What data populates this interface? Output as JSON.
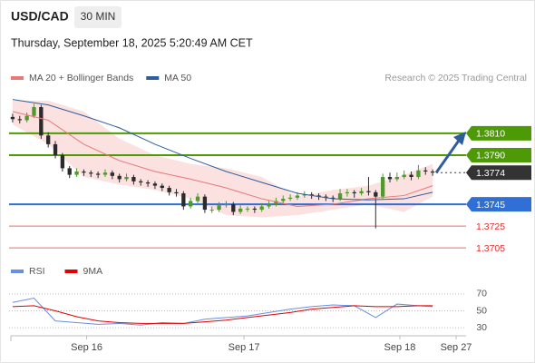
{
  "chart_data": {
    "type": "candlestick",
    "title": "USD/CAD",
    "timeframe": "30 MIN",
    "subtitle": "Thursday, September 18, 2025 5:20:49 AM CET",
    "source": "Research © 2025 Trading Central",
    "xlim": [
      -0.5,
      63.7
    ],
    "ylim": [
      1.3691,
      1.3849
    ],
    "xticks": [
      {
        "value": 10.4,
        "label": "Sep 16"
      },
      {
        "value": 32.5,
        "label": "Sep 17"
      },
      {
        "value": 54.4,
        "label": "Sep 18"
      },
      {
        "value": 62.3,
        "label": "Sep 27"
      }
    ],
    "up_color": "#4e9a2a",
    "down_color": "#2b2b2b",
    "candles": [
      [
        1.3825,
        1.3828,
        1.382,
        1.3823
      ],
      [
        1.3823,
        1.3826,
        1.3819,
        1.3822
      ],
      [
        1.3822,
        1.3829,
        1.382,
        1.3826
      ],
      [
        1.3826,
        1.3837,
        1.3824,
        1.3834
      ],
      [
        1.3834,
        1.3836,
        1.3805,
        1.3808
      ],
      [
        1.3808,
        1.3811,
        1.3797,
        1.38
      ],
      [
        1.38,
        1.3803,
        1.3787,
        1.379
      ],
      [
        1.379,
        1.3792,
        1.3775,
        1.3778
      ],
      [
        1.3778,
        1.378,
        1.3769,
        1.3772
      ],
      [
        1.3772,
        1.3778,
        1.377,
        1.3775
      ],
      [
        1.3775,
        1.3777,
        1.3771,
        1.3774
      ],
      [
        1.3774,
        1.3776,
        1.377,
        1.3773
      ],
      [
        1.3773,
        1.3775,
        1.3769,
        1.3772
      ],
      [
        1.3772,
        1.3777,
        1.377,
        1.3774
      ],
      [
        1.3774,
        1.3776,
        1.3768,
        1.3771
      ],
      [
        1.3771,
        1.3773,
        1.3765,
        1.3768
      ],
      [
        1.3768,
        1.3773,
        1.3766,
        1.377
      ],
      [
        1.377,
        1.3772,
        1.3763,
        1.3766
      ],
      [
        1.3766,
        1.3768,
        1.3762,
        1.3765
      ],
      [
        1.3765,
        1.3767,
        1.3761,
        1.3764
      ],
      [
        1.3764,
        1.3766,
        1.3759,
        1.3762
      ],
      [
        1.3762,
        1.3764,
        1.3757,
        1.376
      ],
      [
        1.376,
        1.3762,
        1.3753,
        1.3756
      ],
      [
        1.3756,
        1.3759,
        1.3752,
        1.3755
      ],
      [
        1.3755,
        1.3757,
        1.374,
        1.3743
      ],
      [
        1.3743,
        1.3751,
        1.3741,
        1.3748
      ],
      [
        1.3748,
        1.3755,
        1.3746,
        1.3752
      ],
      [
        1.3752,
        1.3754,
        1.3737,
        1.374
      ],
      [
        1.374,
        1.3743,
        1.3737,
        1.374
      ],
      [
        1.374,
        1.3747,
        1.3738,
        1.3744
      ],
      [
        1.3744,
        1.3748,
        1.3742,
        1.3745
      ],
      [
        1.3745,
        1.3747,
        1.3735,
        1.3738
      ],
      [
        1.3738,
        1.3744,
        1.3736,
        1.3741
      ],
      [
        1.3741,
        1.3743,
        1.3738,
        1.3741
      ],
      [
        1.3741,
        1.3743,
        1.3737,
        1.374
      ],
      [
        1.374,
        1.3746,
        1.3738,
        1.3743
      ],
      [
        1.3743,
        1.3748,
        1.3741,
        1.3745
      ],
      [
        1.3745,
        1.3751,
        1.3743,
        1.3748
      ],
      [
        1.3748,
        1.3753,
        1.3746,
        1.375
      ],
      [
        1.375,
        1.3754,
        1.3748,
        1.3751
      ],
      [
        1.3751,
        1.3756,
        1.3749,
        1.3753
      ],
      [
        1.3753,
        1.3757,
        1.3751,
        1.3754
      ],
      [
        1.3754,
        1.3756,
        1.375,
        1.3753
      ],
      [
        1.3753,
        1.3755,
        1.3749,
        1.3752
      ],
      [
        1.3752,
        1.3754,
        1.3748,
        1.3751
      ],
      [
        1.3751,
        1.3753,
        1.3747,
        1.375
      ],
      [
        1.375,
        1.3759,
        1.3748,
        1.3755
      ],
      [
        1.3755,
        1.3759,
        1.3752,
        1.3756
      ],
      [
        1.3756,
        1.3758,
        1.3751,
        1.3755
      ],
      [
        1.3755,
        1.376,
        1.3753,
        1.3757
      ],
      [
        1.3757,
        1.377,
        1.3753,
        1.3756
      ],
      [
        1.3756,
        1.3758,
        1.3723,
        1.3752
      ],
      [
        1.3752,
        1.3773,
        1.375,
        1.377
      ],
      [
        1.377,
        1.3774,
        1.3765,
        1.3768
      ],
      [
        1.3768,
        1.3774,
        1.3766,
        1.377
      ],
      [
        1.377,
        1.3776,
        1.3768,
        1.3772
      ],
      [
        1.3772,
        1.3775,
        1.3767,
        1.377
      ],
      [
        1.377,
        1.3781,
        1.3768,
        1.3776
      ],
      [
        1.3776,
        1.3779,
        1.3772,
        1.3775
      ],
      [
        1.3775,
        1.3777,
        1.3771,
        1.3774
      ]
    ],
    "overlay": {
      "x": [
        0,
        5,
        10,
        15,
        20,
        25,
        30,
        35,
        40,
        45,
        50,
        55,
        59
      ],
      "series": [
        {
          "name": "MA 20 + Bollinger Bands",
          "color": "#e87878",
          "band_color": "#fbdada",
          "values": [
            1.383,
            1.3822,
            1.38,
            1.3785,
            1.3775,
            1.3768,
            1.376,
            1.375,
            1.3743,
            1.3745,
            1.375,
            1.3753,
            1.3762
          ],
          "upper": [
            1.384,
            1.384,
            1.383,
            1.3805,
            1.379,
            1.3782,
            1.3778,
            1.377,
            1.3752,
            1.3758,
            1.3762,
            1.3772,
            1.3782
          ],
          "lower": [
            1.3818,
            1.38,
            1.377,
            1.3763,
            1.3758,
            1.375,
            1.3735,
            1.3733,
            1.3735,
            1.374,
            1.3745,
            1.3738,
            1.3752
          ]
        },
        {
          "name": "MA 50",
          "color": "#2f5d9c",
          "values": [
            1.3841,
            1.3836,
            1.3826,
            1.3815,
            1.38,
            1.3787,
            1.3775,
            1.3765,
            1.3755,
            1.375,
            1.3749,
            1.375,
            1.3756
          ]
        }
      ]
    },
    "levels": [
      {
        "value": 1.381,
        "label": "1.3810",
        "color": "#4e9a06",
        "boxed": true
      },
      {
        "value": 1.379,
        "label": "1.3790",
        "color": "#4e9a06",
        "boxed": true
      },
      {
        "value": 1.3774,
        "label": "1.3774",
        "color": "#333333",
        "boxed": true,
        "dashed": true
      },
      {
        "value": 1.3745,
        "label": "1.3745",
        "color": "#2f6fd6",
        "boxed": true
      },
      {
        "value": 1.3725,
        "label": "1.3725",
        "color": "#e03030",
        "boxed": false
      },
      {
        "value": 1.3705,
        "label": "1.3705",
        "color": "#e03030",
        "boxed": false
      }
    ],
    "rsi": {
      "ylim": [
        15,
        85
      ],
      "yticks": [
        30,
        50,
        70
      ],
      "x": [
        0,
        3,
        6,
        9,
        12,
        15,
        18,
        21,
        24,
        27,
        30,
        33,
        36,
        39,
        42,
        45,
        48,
        51,
        54,
        57,
        59
      ],
      "series": [
        {
          "name": "RSI",
          "color": "#6a8ee0",
          "values": [
            60,
            65,
            38,
            36,
            34,
            35,
            33,
            36,
            35,
            40,
            42,
            44,
            48,
            52,
            55,
            57,
            56,
            42,
            58,
            56,
            55
          ]
        },
        {
          "name": "9MA",
          "color": "#e00000",
          "values": [
            55,
            56,
            50,
            43,
            38,
            36,
            35,
            35,
            35,
            37,
            39,
            42,
            45,
            48,
            52,
            54,
            56,
            55,
            55,
            56,
            56
          ]
        }
      ]
    }
  }
}
